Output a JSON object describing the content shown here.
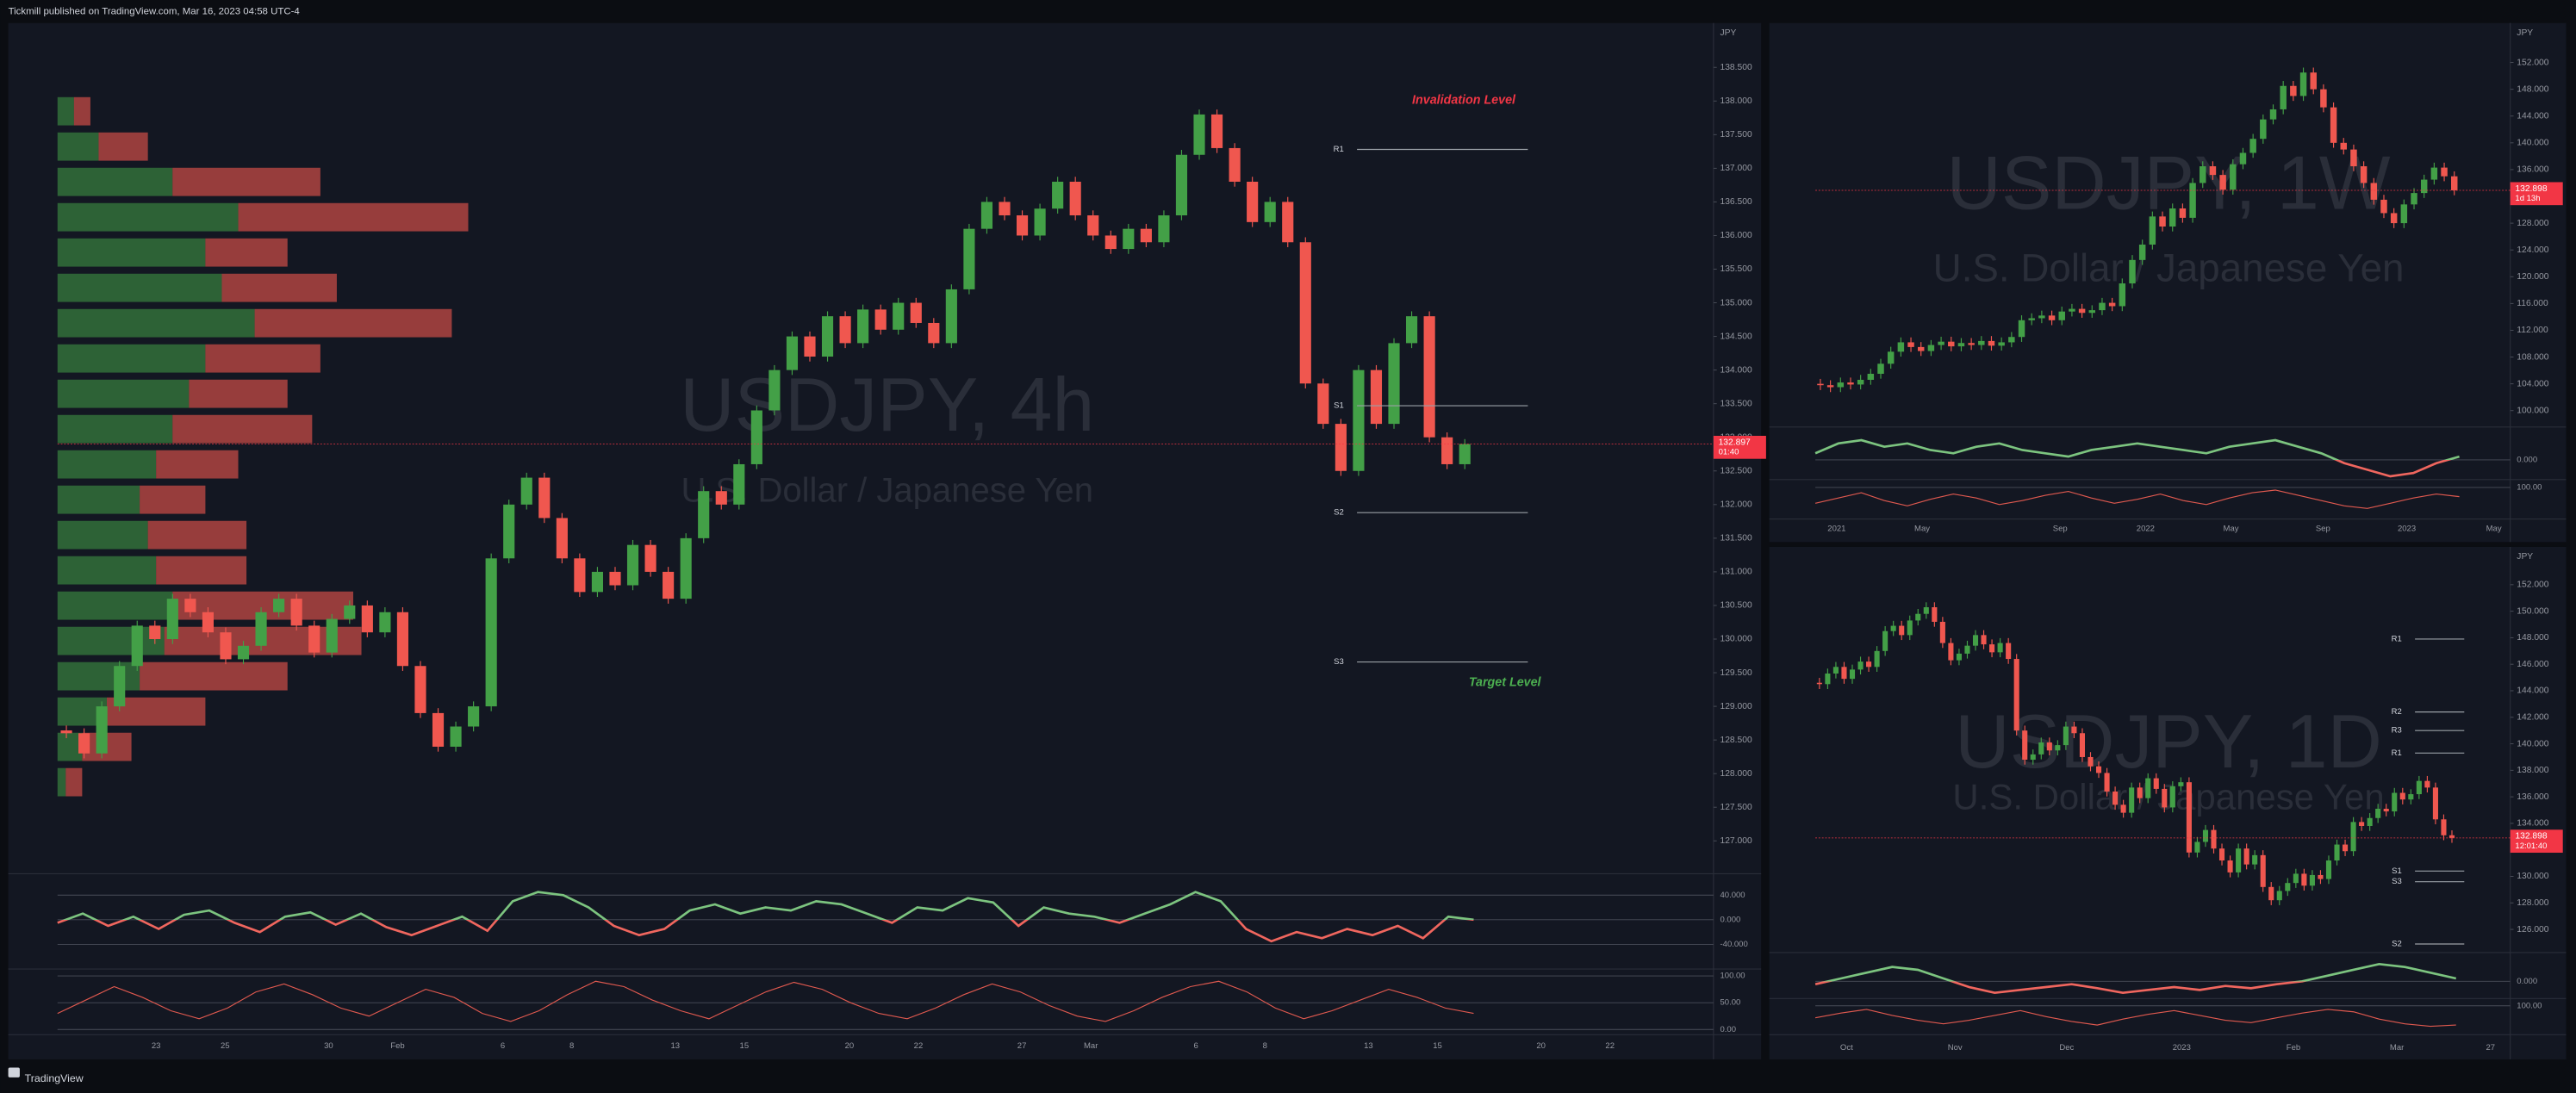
{
  "header": {
    "text": "Tickmill published on TradingView.com, Mar 16, 2023 04:58 UTC-4"
  },
  "footer": {
    "brand": "TradingView"
  },
  "colors": {
    "up": "#43a047",
    "down": "#f0574f",
    "osc_up": "#7cc47f",
    "osc_down": "#f0665e",
    "stoch": "#e0594f",
    "pivot": "#9aa0a6"
  },
  "panels": [
    {
      "title": "USDJPY, 4h",
      "subtitle": "U.S. Dollar / Japanese Yen",
      "currency": "JPY",
      "last_price": "132.897",
      "countdown": "01:40",
      "ylim": [
        126.56,
        139.16
      ],
      "yticks": [
        {
          "value": 127,
          "label": "127.000"
        },
        {
          "value": 127.5,
          "label": "127.500"
        },
        {
          "value": 128,
          "label": "128.000"
        },
        {
          "value": 128.5,
          "label": "128.500"
        },
        {
          "value": 129,
          "label": "129.000"
        },
        {
          "value": 129.5,
          "label": "129.500"
        },
        {
          "value": 130,
          "label": "130.000"
        },
        {
          "value": 130.5,
          "label": "130.500"
        },
        {
          "value": 131,
          "label": "131.000"
        },
        {
          "value": 131.5,
          "label": "131.500"
        },
        {
          "value": 132,
          "label": "132.000"
        },
        {
          "value": 132.5,
          "label": "132.500"
        },
        {
          "value": 133,
          "label": "133.000"
        },
        {
          "value": 133.5,
          "label": "133.500"
        },
        {
          "value": 134,
          "label": "134.000"
        },
        {
          "value": 134.5,
          "label": "134.500"
        },
        {
          "value": 135,
          "label": "135.000"
        },
        {
          "value": 135.5,
          "label": "135.500"
        },
        {
          "value": 136,
          "label": "136.000"
        },
        {
          "value": 136.5,
          "label": "136.500"
        },
        {
          "value": 137,
          "label": "137.000"
        },
        {
          "value": 137.5,
          "label": "137.500"
        },
        {
          "value": 138,
          "label": "138.000"
        },
        {
          "value": 138.5,
          "label": "138.500"
        }
      ],
      "closes": [
        128.6,
        128.3,
        129.0,
        129.6,
        130.2,
        130.0,
        130.6,
        130.4,
        130.1,
        129.7,
        129.9,
        130.4,
        130.6,
        130.2,
        129.8,
        130.3,
        130.5,
        130.1,
        130.4,
        129.6,
        128.9,
        128.4,
        128.7,
        129.0,
        131.2,
        132.0,
        132.4,
        131.8,
        131.2,
        130.7,
        131.0,
        130.8,
        131.4,
        131.0,
        130.6,
        131.5,
        132.2,
        132.0,
        132.6,
        133.4,
        134.0,
        134.5,
        134.2,
        134.8,
        134.4,
        134.9,
        134.6,
        135.0,
        134.7,
        134.4,
        135.2,
        136.1,
        136.5,
        136.3,
        136.0,
        136.4,
        136.8,
        136.3,
        136.0,
        135.8,
        136.1,
        135.9,
        136.3,
        137.2,
        137.8,
        137.3,
        136.8,
        136.2,
        136.5,
        135.9,
        133.8,
        133.2,
        132.5,
        134.0,
        133.2,
        134.4,
        134.8,
        133.0,
        132.6,
        132.9
      ],
      "profile_buy": [
        0,
        0,
        10,
        25,
        70,
        110,
        90,
        100,
        120,
        90,
        80,
        70,
        60,
        50,
        55,
        60,
        70,
        65,
        50,
        30,
        15,
        5,
        0,
        0
      ],
      "profile_sell": [
        0,
        0,
        10,
        30,
        90,
        140,
        50,
        70,
        120,
        70,
        60,
        85,
        50,
        40,
        60,
        55,
        110,
        120,
        90,
        60,
        30,
        10,
        0,
        0
      ],
      "pivots": [
        {
          "label": "R1",
          "value": 137.28
        },
        {
          "label": "S1",
          "value": 133.47
        },
        {
          "label": "S2",
          "value": 131.88
        },
        {
          "label": "S3",
          "value": 129.66
        }
      ],
      "annotations": [
        {
          "text": "Invalidation Level",
          "value": 138.01,
          "color": "#f23645"
        },
        {
          "text": "Target Level",
          "value": 129.35,
          "color": "#4caf50"
        }
      ],
      "osc1": {
        "ylim": [
          -74.7,
          74.7
        ],
        "yticks": [
          {
            "value": 40,
            "label": "40.000"
          },
          {
            "value": 0,
            "label": "0.000"
          },
          {
            "value": -40,
            "label": "-40.000"
          }
        ],
        "values": [
          -5,
          10,
          -10,
          5,
          -15,
          8,
          15,
          -5,
          -20,
          5,
          12,
          -8,
          10,
          -12,
          -25,
          -10,
          5,
          -18,
          30,
          45,
          40,
          20,
          -10,
          -25,
          -15,
          15,
          25,
          10,
          20,
          15,
          30,
          25,
          10,
          -5,
          20,
          15,
          35,
          28,
          -10,
          20,
          10,
          5,
          -5,
          10,
          25,
          45,
          30,
          -15,
          -35,
          -20,
          -30,
          -15,
          -25,
          -10,
          -30,
          5,
          0
        ]
      },
      "osc2": {
        "ylim": [
          -9.7,
          112.9
        ],
        "yticks": [
          {
            "value": 100,
            "label": "100.00"
          },
          {
            "value": 50,
            "label": "50.00"
          },
          {
            "value": 0,
            "label": "0.00"
          }
        ],
        "values": [
          30,
          55,
          80,
          60,
          35,
          20,
          40,
          70,
          85,
          65,
          40,
          25,
          50,
          75,
          60,
          30,
          15,
          35,
          65,
          90,
          80,
          55,
          35,
          20,
          45,
          70,
          88,
          75,
          50,
          30,
          20,
          40,
          65,
          85,
          70,
          45,
          25,
          15,
          35,
          60,
          80,
          90,
          70,
          40,
          20,
          35,
          55,
          75,
          60,
          40,
          30
        ]
      },
      "time_labels": [
        "23",
        "25",
        "30",
        "Feb",
        "6",
        "8",
        "13",
        "15",
        "20",
        "22",
        "27",
        "Mar",
        "6",
        "8",
        "13",
        "15",
        "20",
        "22"
      ]
    },
    {
      "title": "USDJPY, 1W",
      "subtitle": "U.S. Dollar / Japanese Yen",
      "currency": "JPY",
      "last_price": "132.898",
      "countdown": "1d 13h",
      "ylim": [
        98.04,
        157.9
      ],
      "yticks": [
        {
          "value": 100,
          "label": "100.000"
        },
        {
          "value": 104,
          "label": "104.000"
        },
        {
          "value": 108,
          "label": "108.000"
        },
        {
          "value": 112,
          "label": "112.000"
        },
        {
          "value": 116,
          "label": "116.000"
        },
        {
          "value": 120,
          "label": "120.000"
        },
        {
          "value": 124,
          "label": "124.000"
        },
        {
          "value": 128,
          "label": "128.000"
        },
        {
          "value": 136,
          "label": "136.000"
        },
        {
          "value": 140,
          "label": "140.000"
        },
        {
          "value": 144,
          "label": "144.000"
        },
        {
          "value": 148,
          "label": "148.000"
        },
        {
          "value": 152,
          "label": "152.000"
        }
      ],
      "closes": [
        103.8,
        103.5,
        104.2,
        103.9,
        104.6,
        105.5,
        107.0,
        108.8,
        110.2,
        109.5,
        108.9,
        109.8,
        110.3,
        109.6,
        110.1,
        109.8,
        110.4,
        109.7,
        110.2,
        111.0,
        113.5,
        113.8,
        114.2,
        113.5,
        114.8,
        115.2,
        114.6,
        115.0,
        116.1,
        115.6,
        119.0,
        122.5,
        124.8,
        129.0,
        127.5,
        130.2,
        128.8,
        134.0,
        136.5,
        135.2,
        133.0,
        136.8,
        138.5,
        140.6,
        143.5,
        145.0,
        148.5,
        147.0,
        150.5,
        148.0,
        145.3,
        140.0,
        139.0,
        136.5,
        134.0,
        131.5,
        129.5,
        128.0,
        130.8,
        132.5,
        134.5,
        136.3,
        135.0,
        132.9
      ],
      "osc1": {
        "ylim": [
          -30,
          50
        ],
        "yticks": [
          {
            "value": 0,
            "label": "0.000"
          }
        ],
        "values": [
          10,
          25,
          30,
          20,
          25,
          15,
          10,
          20,
          25,
          15,
          10,
          5,
          15,
          20,
          25,
          20,
          15,
          10,
          20,
          25,
          30,
          20,
          10,
          -5,
          -15,
          -25,
          -20,
          -5,
          5
        ]
      },
      "osc2": {
        "ylim": [
          -20,
          130
        ],
        "yticks": [
          {
            "value": 100,
            "label": "100.00"
          }
        ],
        "values": [
          40,
          60,
          80,
          50,
          30,
          55,
          75,
          60,
          35,
          50,
          70,
          85,
          60,
          40,
          55,
          75,
          50,
          35,
          60,
          80,
          90,
          70,
          50,
          30,
          20,
          40,
          60,
          75,
          65
        ]
      },
      "time_labels": [
        "2021",
        "May",
        "Sep",
        "2022",
        "May",
        "Sep",
        "2023",
        "May"
      ]
    },
    {
      "title": "USDJPY, 1D",
      "subtitle": "U.S. Dollar / Japanese Yen",
      "currency": "JPY",
      "last_price": "132.898",
      "countdown": "12:01:40",
      "ylim": [
        124.5,
        154.85
      ],
      "yticks": [
        {
          "value": 126,
          "label": "126.000"
        },
        {
          "value": 128,
          "label": "128.000"
        },
        {
          "value": 130,
          "label": "130.000"
        },
        {
          "value": 134,
          "label": "134.000"
        },
        {
          "value": 136,
          "label": "136.000"
        },
        {
          "value": 138,
          "label": "138.000"
        },
        {
          "value": 140,
          "label": "140.000"
        },
        {
          "value": 142,
          "label": "142.000"
        },
        {
          "value": 144,
          "label": "144.000"
        },
        {
          "value": 146,
          "label": "146.000"
        },
        {
          "value": 148,
          "label": "148.000"
        },
        {
          "value": 150,
          "label": "150.000"
        },
        {
          "value": 152,
          "label": "152.000"
        }
      ],
      "closes": [
        144.5,
        145.3,
        145.8,
        144.9,
        145.6,
        146.2,
        145.8,
        147.0,
        148.5,
        148.9,
        148.2,
        149.3,
        149.8,
        150.3,
        149.2,
        147.6,
        146.3,
        146.8,
        147.4,
        148.2,
        147.5,
        146.9,
        147.6,
        146.4,
        141.0,
        138.8,
        139.2,
        140.1,
        139.5,
        139.9,
        141.3,
        140.8,
        139.0,
        138.3,
        137.8,
        136.4,
        135.4,
        134.8,
        136.7,
        135.9,
        137.4,
        136.6,
        135.2,
        136.8,
        137.1,
        131.8,
        132.6,
        133.5,
        132.1,
        131.2,
        130.3,
        132.1,
        130.9,
        131.6,
        129.2,
        128.2,
        128.9,
        129.5,
        130.2,
        129.3,
        130.1,
        129.8,
        131.2,
        132.4,
        131.9,
        134.1,
        133.8,
        134.4,
        135.1,
        134.9,
        136.3,
        135.8,
        136.2,
        137.2,
        136.7,
        134.3,
        133.1,
        132.9
      ],
      "pivots": [
        {
          "label": "R1",
          "value": 147.9
        },
        {
          "label": "R2",
          "value": 142.4
        },
        {
          "label": "R3",
          "value": 141.0
        },
        {
          "label": "R1",
          "value": 139.3
        },
        {
          "label": "S1",
          "value": 130.4
        },
        {
          "label": "S3",
          "value": 129.6
        },
        {
          "label": "S2",
          "value": 124.9
        }
      ],
      "osc1": {
        "ylim": [
          -30,
          50
        ],
        "yticks": [
          {
            "value": 0,
            "label": "0.000"
          }
        ],
        "values": [
          -5,
          5,
          15,
          25,
          20,
          5,
          -10,
          -20,
          -15,
          -10,
          -5,
          -12,
          -20,
          -15,
          -10,
          -15,
          -8,
          -12,
          -5,
          0,
          10,
          20,
          30,
          25,
          15,
          5
        ]
      },
      "osc2": {
        "ylim": [
          -20,
          130
        ],
        "yticks": [
          {
            "value": 100,
            "label": "100.00"
          }
        ],
        "values": [
          50,
          70,
          85,
          60,
          40,
          25,
          40,
          60,
          80,
          55,
          35,
          20,
          45,
          65,
          80,
          60,
          40,
          30,
          50,
          70,
          85,
          75,
          45,
          25,
          15,
          20
        ]
      },
      "time_labels": [
        "Oct",
        "Nov",
        "Dec",
        "2023",
        "Feb",
        "Mar",
        "27"
      ]
    }
  ]
}
